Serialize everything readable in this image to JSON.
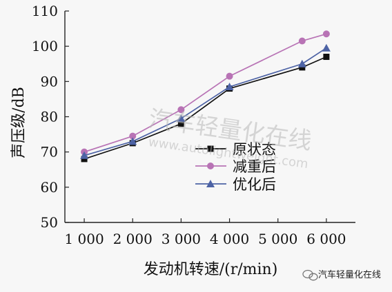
{
  "chart_data": {
    "type": "line",
    "title": "",
    "xlabel": "发动机转速/(r/min)",
    "ylabel": "声压级/dB",
    "x": [
      1000,
      2000,
      3000,
      4000,
      5500,
      6000
    ],
    "x_ticks": [
      1000,
      2000,
      3000,
      4000,
      5000,
      6000
    ],
    "x_tick_labels": [
      "1 000",
      "2 000",
      "3 000",
      "4 000",
      "5 000",
      "6 000"
    ],
    "xlim": [
      600,
      6600
    ],
    "ylim": [
      50,
      110
    ],
    "y_ticks": [
      50,
      60,
      70,
      80,
      90,
      100,
      110
    ],
    "y_tick_labels": [
      "50",
      "60",
      "70",
      "80",
      "90",
      "100",
      "110"
    ],
    "grid": false,
    "legend_position": "center-right",
    "series": [
      {
        "name": "原状态",
        "values": [
          68,
          72.5,
          78,
          88,
          94,
          97
        ],
        "color": "#111111",
        "marker": "square"
      },
      {
        "name": "减重后",
        "values": [
          70,
          74.5,
          82,
          91.5,
          101.5,
          103.5
        ],
        "color": "#b873b5",
        "marker": "circle"
      },
      {
        "name": "优化后",
        "values": [
          69,
          73,
          79.5,
          88.5,
          95,
          99.5
        ],
        "color": "#4d63a5",
        "marker": "triangle"
      }
    ]
  },
  "watermark": {
    "cn": "汽车轻量化在线",
    "url": "www.autolightweight.com"
  },
  "footer": {
    "brand": "汽车轻量化在线"
  }
}
